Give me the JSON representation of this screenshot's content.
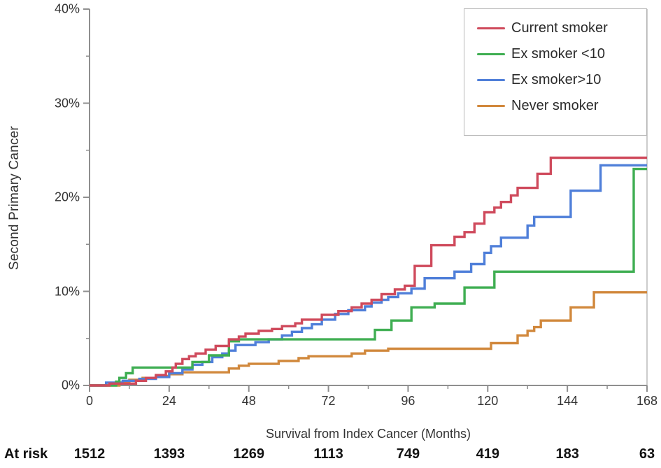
{
  "chart_data": {
    "type": "line",
    "subtype": "step-after",
    "title": "",
    "xlabel": "Survival from Index Cancer (Months)",
    "ylabel": "Second Primary Cancer",
    "xlim": [
      0,
      168
    ],
    "ylim": [
      0,
      40
    ],
    "grid": false,
    "legend_position": "top-right",
    "x_major_ticks": [
      0,
      24,
      48,
      72,
      96,
      120,
      144,
      168
    ],
    "x_minor_ticks": [
      12,
      36,
      60,
      84,
      108,
      132,
      156
    ],
    "y_major_ticks": [
      0,
      10,
      20,
      30,
      40
    ],
    "y_minor_ticks": [
      5,
      15,
      25,
      35
    ],
    "y_major_tick_labels": [
      "0%",
      "10%",
      "20%",
      "30%",
      "40%"
    ],
    "x_major_tick_labels": [
      "0",
      "24",
      "48",
      "72",
      "96",
      "120",
      "144",
      "168"
    ],
    "series": [
      {
        "name": "Current smoker",
        "color": "#cf4a5c",
        "points": [
          [
            0,
            0
          ],
          [
            6,
            0.2
          ],
          [
            14,
            0.5
          ],
          [
            17,
            0.8
          ],
          [
            20,
            1.1
          ],
          [
            23,
            1.5
          ],
          [
            25,
            1.9
          ],
          [
            26,
            2.3
          ],
          [
            28,
            2.8
          ],
          [
            30,
            3.1
          ],
          [
            32,
            3.4
          ],
          [
            35,
            3.8
          ],
          [
            38,
            4.2
          ],
          [
            42,
            4.9
          ],
          [
            45,
            5.2
          ],
          [
            47,
            5.5
          ],
          [
            51,
            5.8
          ],
          [
            55,
            6.0
          ],
          [
            58,
            6.3
          ],
          [
            62,
            6.6
          ],
          [
            64,
            7.0
          ],
          [
            70,
            7.5
          ],
          [
            75,
            7.9
          ],
          [
            79,
            8.3
          ],
          [
            82,
            8.7
          ],
          [
            85,
            9.1
          ],
          [
            88,
            9.7
          ],
          [
            92,
            10.2
          ],
          [
            95,
            10.6
          ],
          [
            98,
            12.7
          ],
          [
            103,
            14.9
          ],
          [
            110,
            15.8
          ],
          [
            113,
            16.3
          ],
          [
            116,
            17.2
          ],
          [
            119,
            18.4
          ],
          [
            122,
            18.9
          ],
          [
            124,
            19.5
          ],
          [
            127,
            20.2
          ],
          [
            129,
            21.0
          ],
          [
            135,
            22.5
          ],
          [
            139,
            24.2
          ],
          [
            168,
            24.2
          ]
        ]
      },
      {
        "name": "Ex smoker <10",
        "color": "#3fae52",
        "points": [
          [
            0,
            0
          ],
          [
            8,
            0.4
          ],
          [
            9,
            0.8
          ],
          [
            11,
            1.3
          ],
          [
            13,
            1.9
          ],
          [
            31,
            2.5
          ],
          [
            36,
            3.2
          ],
          [
            42,
            4.7
          ],
          [
            45,
            4.9
          ],
          [
            86,
            5.9
          ],
          [
            91,
            6.9
          ],
          [
            97,
            8.3
          ],
          [
            104,
            8.7
          ],
          [
            113,
            10.4
          ],
          [
            122,
            12.1
          ],
          [
            164,
            23.0
          ],
          [
            168,
            23.0
          ]
        ]
      },
      {
        "name": "Ex smoker>10",
        "color": "#4f7fd9",
        "points": [
          [
            0,
            0
          ],
          [
            5,
            0.3
          ],
          [
            10,
            0.5
          ],
          [
            15,
            0.7
          ],
          [
            20,
            0.9
          ],
          [
            24,
            1.3
          ],
          [
            28,
            1.7
          ],
          [
            31,
            2.2
          ],
          [
            34,
            2.5
          ],
          [
            37,
            3.0
          ],
          [
            40,
            3.4
          ],
          [
            42,
            3.7
          ],
          [
            44,
            4.3
          ],
          [
            50,
            4.6
          ],
          [
            54,
            4.9
          ],
          [
            58,
            5.3
          ],
          [
            61,
            5.7
          ],
          [
            64,
            6.1
          ],
          [
            67,
            6.5
          ],
          [
            70,
            7.0
          ],
          [
            74,
            7.6
          ],
          [
            78,
            8.0
          ],
          [
            83,
            8.4
          ],
          [
            85,
            8.8
          ],
          [
            88,
            9.1
          ],
          [
            90,
            9.4
          ],
          [
            93,
            9.8
          ],
          [
            97,
            10.3
          ],
          [
            101,
            11.4
          ],
          [
            110,
            12.1
          ],
          [
            115,
            12.9
          ],
          [
            119,
            14.1
          ],
          [
            121,
            14.8
          ],
          [
            124,
            15.7
          ],
          [
            132,
            17.0
          ],
          [
            134,
            17.9
          ],
          [
            145,
            20.7
          ],
          [
            154,
            23.4
          ],
          [
            168,
            23.4
          ]
        ]
      },
      {
        "name": "Never smoker",
        "color": "#d1883c",
        "points": [
          [
            0,
            0
          ],
          [
            9,
            0.3
          ],
          [
            12,
            0.6
          ],
          [
            16,
            0.8
          ],
          [
            20,
            1.0
          ],
          [
            24,
            1.2
          ],
          [
            28,
            1.4
          ],
          [
            42,
            1.8
          ],
          [
            45,
            2.1
          ],
          [
            48,
            2.3
          ],
          [
            57,
            2.6
          ],
          [
            63,
            2.9
          ],
          [
            66,
            3.1
          ],
          [
            79,
            3.4
          ],
          [
            83,
            3.7
          ],
          [
            90,
            3.9
          ],
          [
            121,
            4.5
          ],
          [
            129,
            5.3
          ],
          [
            132,
            5.8
          ],
          [
            134,
            6.2
          ],
          [
            136,
            6.9
          ],
          [
            145,
            8.3
          ],
          [
            152,
            9.9
          ],
          [
            168,
            9.9
          ]
        ]
      }
    ],
    "at_risk": {
      "label": "At risk",
      "values": [
        "1512",
        "1393",
        "1269",
        "1113",
        "749",
        "419",
        "183",
        "63"
      ]
    }
  }
}
